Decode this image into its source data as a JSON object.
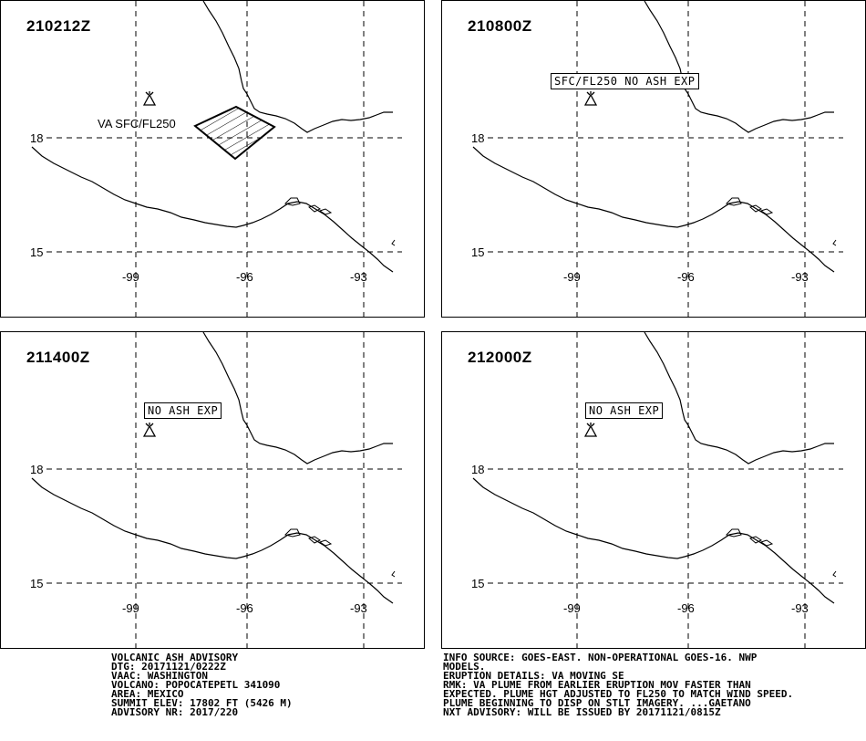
{
  "panels": [
    {
      "time": "210212Z",
      "note": "VA SFC/FL250",
      "note_style": "plain",
      "plume": true
    },
    {
      "time": "210800Z",
      "note": "SFC/FL250 NO ASH EXP",
      "note_style": "box",
      "plume": false
    },
    {
      "time": "211400Z",
      "note": "NO ASH EXP",
      "note_style": "box",
      "plume": false
    },
    {
      "time": "212000Z",
      "note": "NO ASH EXP",
      "note_style": "box",
      "plume": false
    }
  ],
  "grid": {
    "lat_labels": [
      "18",
      "15"
    ],
    "lon_labels": [
      "-99",
      "-96",
      "-93"
    ]
  },
  "advisory_left": [
    "VOLCANIC ASH ADVISORY",
    "DTG: 20171121/0222Z",
    "VAAC: WASHINGTON",
    "VOLCANO: POPOCATEPETL 341090",
    "AREA: MEXICO",
    "SUMMIT ELEV: 17802 FT (5426 M)",
    "ADVISORY NR: 2017/220"
  ],
  "advisory_right": [
    "INFO SOURCE: GOES-EAST. NON-OPERATIONAL GOES-16. NWP",
    "MODELS.",
    "ERUPTION DETAILS: VA MOVING SE",
    "RMK: VA PLUME FROM EARLIER ERUPTION MOV FASTER THAN",
    "EXPECTED. PLUME HGT ADJUSTED TO FL250 TO MATCH WIND SPEED.",
    "PLUME BEGINNING TO DISP ON STLT IMAGERY. ...GAETANO",
    "NXT ADVISORY: WILL BE ISSUED BY 20171121/0815Z"
  ],
  "colors": {
    "line": "#000000",
    "background": "#ffffff"
  }
}
